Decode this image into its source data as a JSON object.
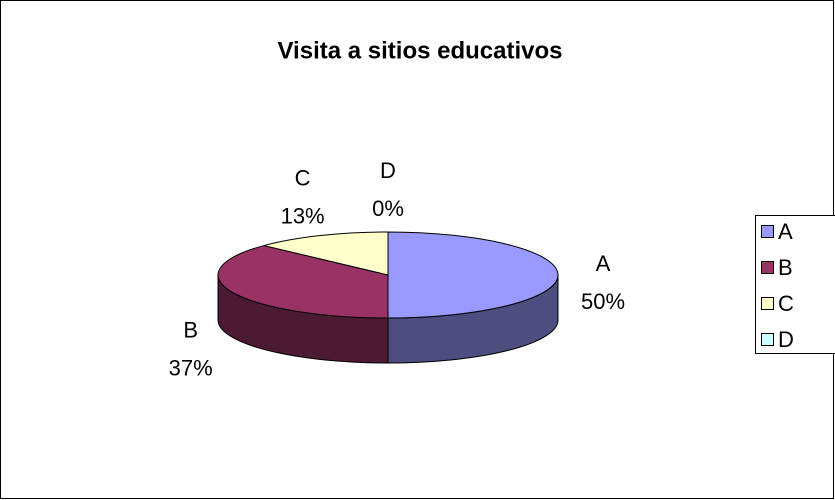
{
  "chart_data": {
    "type": "pie",
    "title": "Visita a sitios educativos",
    "categories": [
      "A",
      "B",
      "C",
      "D"
    ],
    "values": [
      50,
      37,
      13,
      0
    ],
    "value_labels": [
      "50%",
      "37%",
      "13%",
      "0%"
    ],
    "colors": [
      "#9999ff",
      "#993366",
      "#ffffcc",
      "#ccffff"
    ],
    "legend": "right"
  }
}
